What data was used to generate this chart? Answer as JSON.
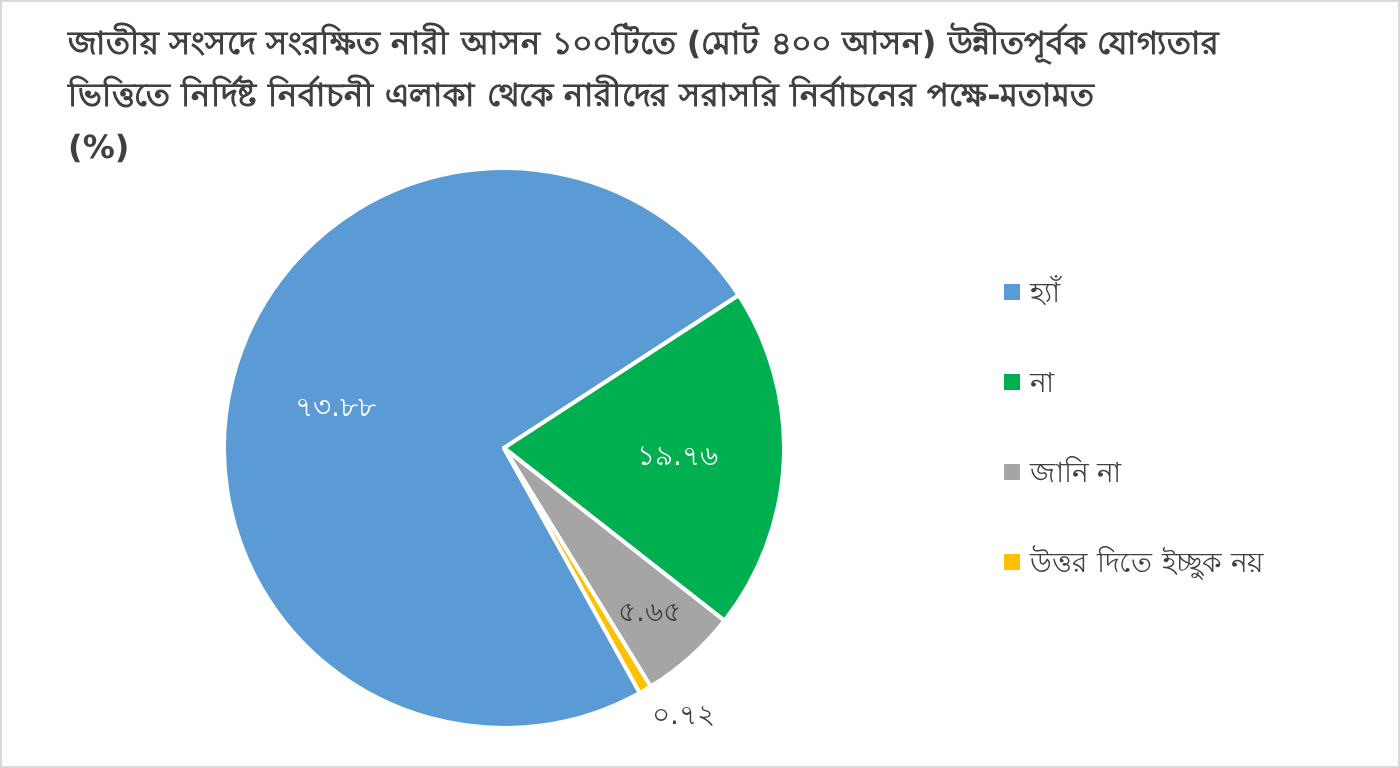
{
  "chart_data": {
    "type": "pie",
    "title": "জাতীয় সংসদে সংরক্ষিত নারী আসন ১০০টিতে (মোট ৪০০ আসন) উন্নীতপূর্বক যোগ্যতার ভিত্তিতে নির্দিষ্ট নির্বাচনী এলাকা থেকে নারীদের সরাসরি নির্বাচনের পক্ষে-মতামত (%)",
    "categories": [
      "হ্যাঁ",
      "না",
      "জানি না",
      "উত্তর দিতে ইচ্ছুক নয়"
    ],
    "values": [
      73.88,
      19.76,
      5.65,
      0.72
    ],
    "colors": [
      "#5b9bd5",
      "#00b050",
      "#a5a5a5",
      "#ffc000"
    ],
    "value_labels": [
      "৭৩.৮৮",
      "১৯.৭৬",
      "৫.৬৫",
      "০.৭২"
    ],
    "legend": "right"
  }
}
